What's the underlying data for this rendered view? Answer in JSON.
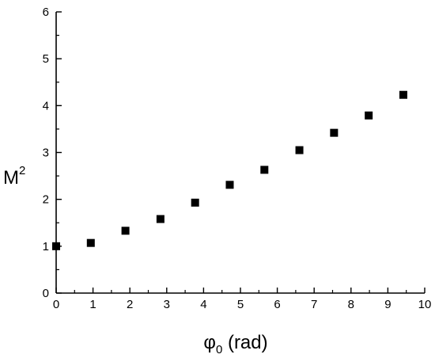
{
  "chart_data": {
    "type": "scatter",
    "xlabel": {
      "base": "φ",
      "sub": "0",
      "rest": " (rad)"
    },
    "ylabel": {
      "base": "M",
      "sup": "2"
    },
    "xlim": [
      0,
      10
    ],
    "ylim": [
      0,
      6
    ],
    "xticks": [
      0,
      1,
      2,
      3,
      4,
      5,
      6,
      7,
      8,
      9,
      10
    ],
    "yticks": [
      0,
      1,
      2,
      3,
      4,
      5,
      6
    ],
    "grid": false,
    "marker": "square",
    "marker_color": "#000000",
    "x": [
      0.0,
      0.94,
      1.88,
      2.83,
      3.77,
      4.71,
      5.65,
      6.6,
      7.54,
      8.48,
      9.42
    ],
    "y": [
      1.0,
      1.07,
      1.33,
      1.58,
      1.93,
      2.31,
      2.63,
      3.05,
      3.42,
      3.79,
      4.23
    ]
  }
}
